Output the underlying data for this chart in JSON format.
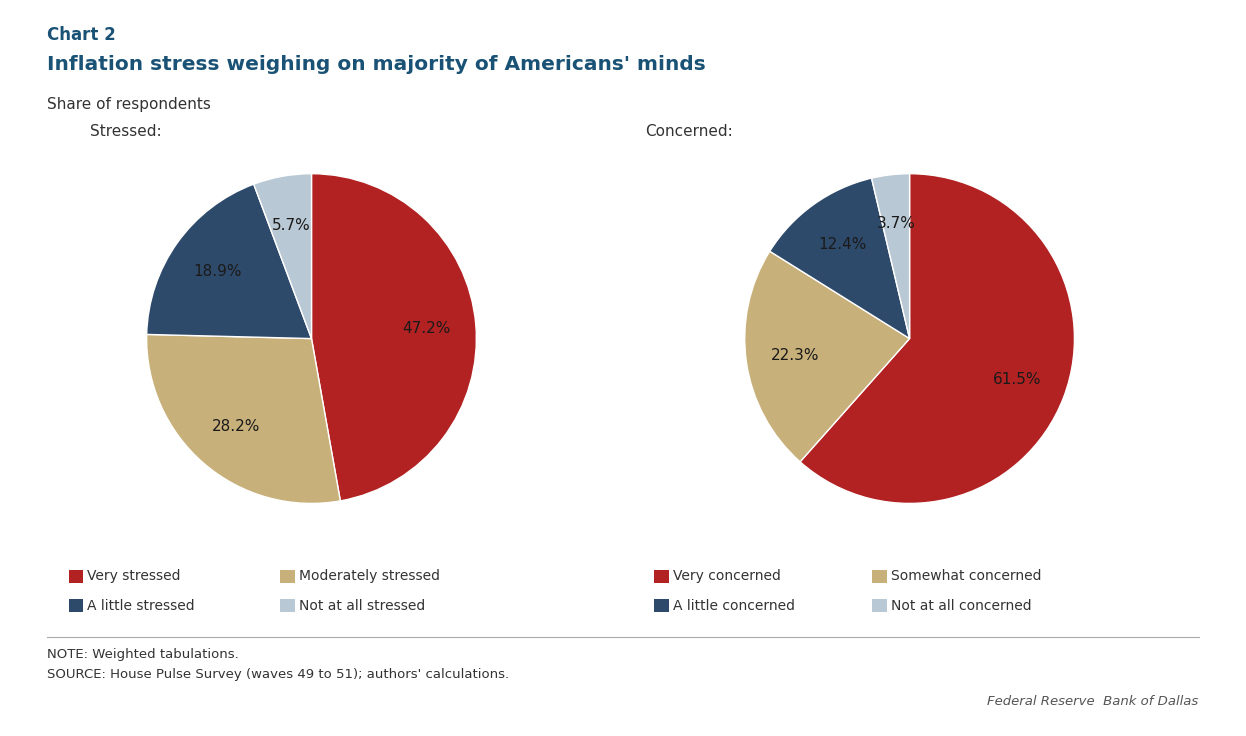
{
  "chart_label": "Chart 2",
  "title": "Inflation stress weighing on majority of Americans' minds",
  "subtitle": "Share of respondents",
  "background_color": "#ffffff",
  "pie1_label": "Stressed:",
  "pie1_values": [
    47.2,
    28.2,
    18.9,
    5.7
  ],
  "pie1_pct_labels": [
    "47.2%",
    "28.2%",
    "18.9%",
    "5.7%"
  ],
  "pie1_colors": [
    "#b22222",
    "#c8b07a",
    "#2e4a6b",
    "#b8c8d4"
  ],
  "pie1_startangle": 90,
  "pie2_label": "Concerned:",
  "pie2_values": [
    61.5,
    22.3,
    12.4,
    3.7
  ],
  "pie2_pct_labels": [
    "61.5%",
    "22.3%",
    "12.4%",
    "3.7%"
  ],
  "pie2_colors": [
    "#b22222",
    "#c8b07a",
    "#2e4a6b",
    "#b8c8d4"
  ],
  "pie2_startangle": 90,
  "legend1_labels": [
    "Very stressed",
    "Moderately stressed",
    "A little stressed",
    "Not at all stressed"
  ],
  "legend2_labels": [
    "Very concerned",
    "Somewhat concerned",
    "A little concerned",
    "Not at all concerned"
  ],
  "legend_colors": [
    "#b22222",
    "#c8b07a",
    "#2e4a6b",
    "#b8c8d4"
  ],
  "note_text": "NOTE: Weighted tabulations.\nSOURCE: House Pulse Survey (waves 49 to 51); authors' calculations.",
  "source_text": "Federal Reserve  Bank of Dallas",
  "title_color": "#1a5276",
  "chart_label_color": "#1a5276",
  "subtitle_color": "#333333",
  "text_color": "#333333"
}
